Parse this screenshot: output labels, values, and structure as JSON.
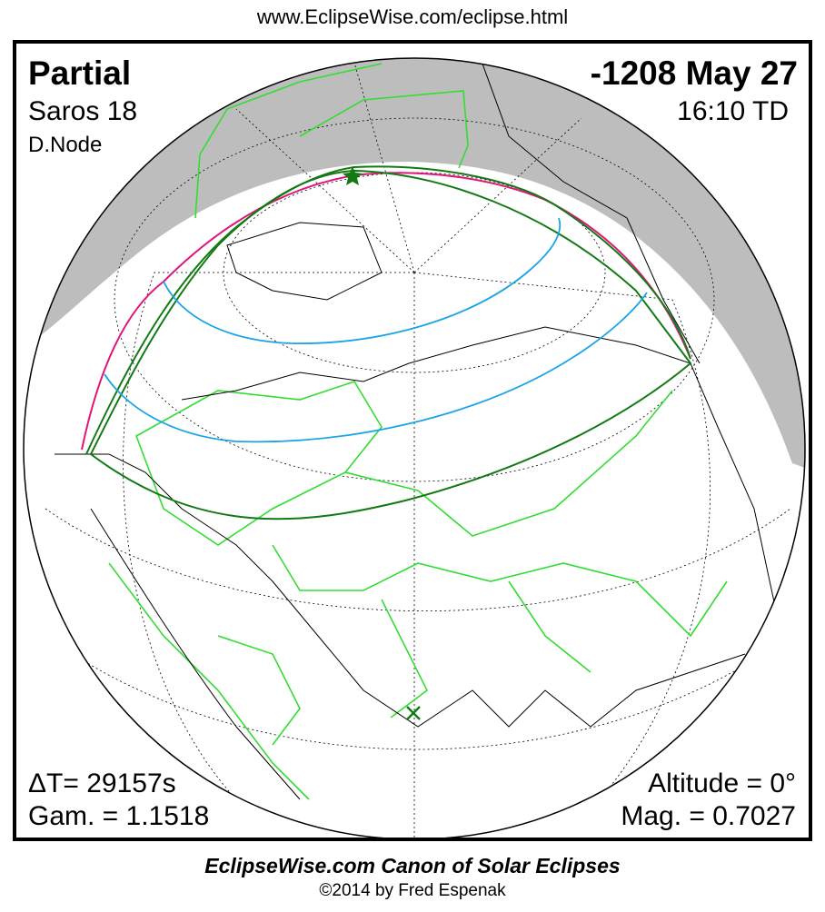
{
  "header": {
    "url": "www.EclipseWise.com/eclipse.html"
  },
  "eclipse": {
    "type": "Partial",
    "date": "-1208 May 27",
    "saros": "Saros  18",
    "time": "16:10 TD",
    "node": "D.Node",
    "delta_t": "ΔT=  29157s",
    "altitude": "Altitude =  0°",
    "gamma": "Gam. = 1.1518",
    "magnitude": "Mag. = 0.7027"
  },
  "map": {
    "colors": {
      "night": "#bdbdbd",
      "borders": "#33dd33",
      "coast": "#000000",
      "penumbra_limit": "#e0157a",
      "rise_set_curve": "#137a13",
      "magnitude_curves": "#1aa3e8",
      "grid": "#000000"
    },
    "markers": [
      {
        "type": "star",
        "label": "greatest-eclipse"
      },
      {
        "type": "x",
        "label": "subsolar-point"
      }
    ]
  },
  "footer": {
    "title": "EclipseWise.com Canon of Solar Eclipses",
    "copyright": "©2014 by Fred Espenak"
  }
}
